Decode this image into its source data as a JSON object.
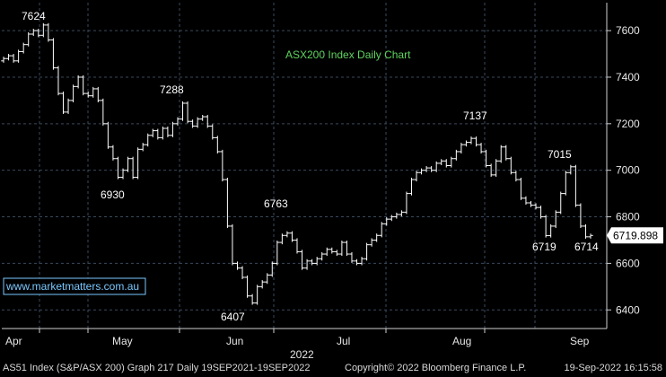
{
  "chart_data": {
    "type": "ohlc",
    "title": "ASX200 Index Daily Chart",
    "watermark": "www.marketmatters.com.au",
    "year_label": "2022",
    "x_labels": [
      "Apr",
      "May",
      "Jun",
      "Jul",
      "Aug",
      "Sep"
    ],
    "y_ticks": [
      6400,
      6600,
      6800,
      7000,
      7200,
      7400,
      7600
    ],
    "ylim": [
      6320,
      7720
    ],
    "last_price": "6719.898",
    "annotations": [
      "7624",
      "6930",
      "7288",
      "6763",
      "6407",
      "7137",
      "7015",
      "6719",
      "6714"
    ],
    "closes": [
      7480,
      7492,
      7470,
      7510,
      7540,
      7585,
      7600,
      7580,
      7624,
      7560,
      7440,
      7330,
      7250,
      7300,
      7360,
      7400,
      7330,
      7320,
      7350,
      7300,
      7200,
      7100,
      7050,
      6970,
      7000,
      7050,
      6970,
      7090,
      7110,
      7150,
      7170,
      7140,
      7180,
      7150,
      7200,
      7220,
      7288,
      7210,
      7190,
      7220,
      7230,
      7190,
      7140,
      7080,
      6960,
      6760,
      6600,
      6580,
      6540,
      6460,
      6430,
      6500,
      6520,
      6550,
      6600,
      6690,
      6720,
      6730,
      6700,
      6650,
      6580,
      6610,
      6600,
      6620,
      6640,
      6660,
      6650,
      6640,
      6690,
      6640,
      6610,
      6600,
      6620,
      6680,
      6700,
      6720,
      6770,
      6790,
      6800,
      6810,
      6820,
      6900,
      6960,
      6990,
      7000,
      7010,
      7000,
      7030,
      7040,
      7020,
      7050,
      7080,
      7110,
      7120,
      7137,
      7110,
      7080,
      7020,
      6980,
      7040,
      7100,
      7050,
      6990,
      6960,
      6880,
      6860,
      6850,
      6840,
      6800,
      6719,
      6760,
      6820,
      6900,
      6990,
      7015,
      6850,
      6760,
      6714,
      6719.898
    ]
  },
  "footer": {
    "left": "AS51 Index (S&P/ASX 200) Graph 217  Daily 19SEP2021-19SEP2022",
    "middle": "Copyright© 2022 Bloomberg Finance L.P.",
    "right": "19-Sep-2022 16:15:58"
  },
  "colors": {
    "background": "#000000",
    "grid": "#3a4a5e",
    "bars": "#ffffff",
    "title": "#5fd35f",
    "watermark": "#7ac8ff"
  }
}
